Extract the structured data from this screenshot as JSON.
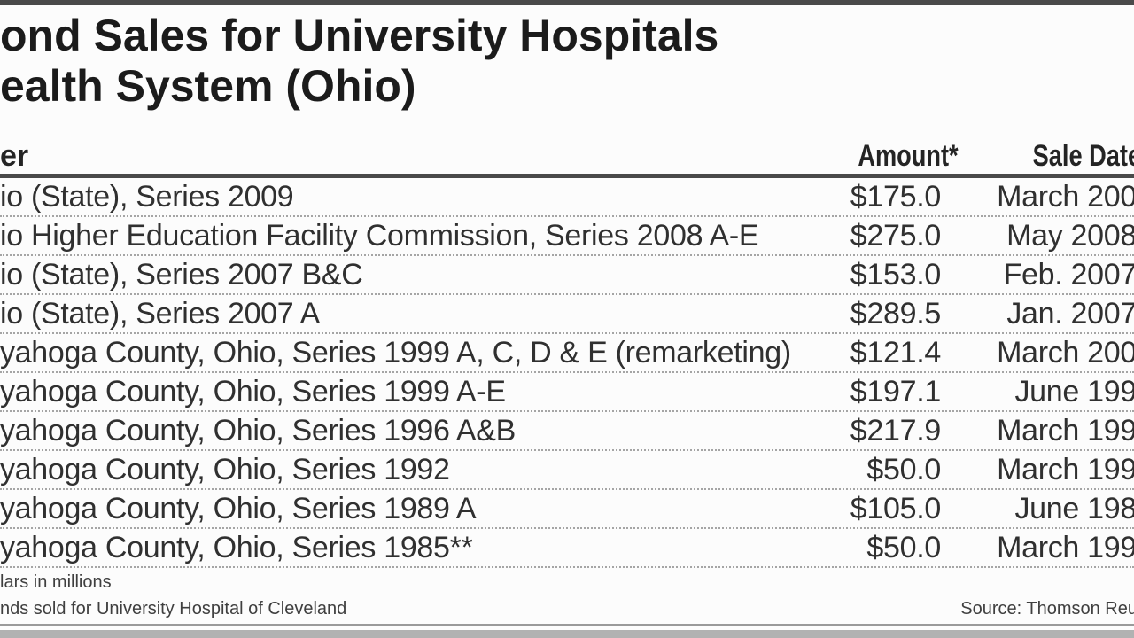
{
  "title": {
    "line1": "ond Sales for University Hospitals",
    "line2": "ealth System (Ohio)"
  },
  "chart_data": {
    "type": "table",
    "title": "ond Sales for University Hospitals ealth System (Ohio)",
    "columns": [
      "er",
      "Amount*",
      "Sale Date"
    ],
    "rows": [
      {
        "issuer": "io (State), Series 2009",
        "amount": "$175.0",
        "sale_date": "March 200"
      },
      {
        "issuer": "io Higher Education Facility Commission, Series 2008 A-E",
        "amount": "$275.0",
        "sale_date": "May 2008"
      },
      {
        "issuer": "io (State), Series 2007 B&C",
        "amount": "$153.0",
        "sale_date": "Feb. 2007"
      },
      {
        "issuer": "io (State), Series 2007 A",
        "amount": "$289.5",
        "sale_date": "Jan. 2007"
      },
      {
        "issuer": "yahoga County, Ohio, Series 1999 A, C, D & E (remarketing)",
        "amount": "$121.4",
        "sale_date": "March 200"
      },
      {
        "issuer": "yahoga County, Ohio, Series 1999 A-E",
        "amount": "$197.1",
        "sale_date": "June 199"
      },
      {
        "issuer": "yahoga County, Ohio, Series 1996 A&B",
        "amount": "$217.9",
        "sale_date": "March 199"
      },
      {
        "issuer": "yahoga County, Ohio, Series 1992",
        "amount": "$50.0",
        "sale_date": "March 199"
      },
      {
        "issuer": "yahoga County, Ohio, Series 1989 A",
        "amount": "$105.0",
        "sale_date": "June 198"
      },
      {
        "issuer": "yahoga County, Ohio, Series 1985**",
        "amount": "$50.0",
        "sale_date": "March 199"
      }
    ],
    "amount_values_millions": [
      175.0,
      275.0,
      153.0,
      289.5,
      121.4,
      197.1,
      217.9,
      50.0,
      105.0,
      50.0
    ]
  },
  "footnotes": {
    "line1": "lars in millions",
    "line2": "nds sold for University Hospital of Cleveland"
  },
  "source": "Source: Thomson Reu",
  "colors": {
    "top_bar": "#4a4a4a",
    "header_rule": "#4a4a4a",
    "row_separator_dotted": "#a5a5a5",
    "bottom_rule": "#9a9a9a",
    "bottom_bar": "#b2b2b2",
    "text": "#303030",
    "background": "#fcfcfc"
  }
}
